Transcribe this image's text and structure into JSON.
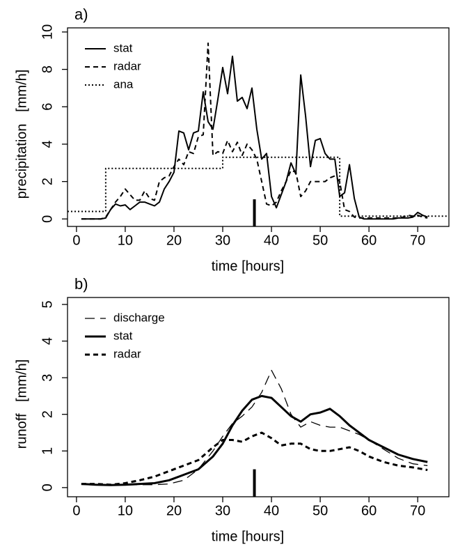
{
  "chart_data": [
    {
      "type": "line",
      "panel_label": "a)",
      "xlabel": "time   [hours]",
      "ylabel": "precipitation   [mm/h]",
      "xlim": [
        -1.84,
        76.4
      ],
      "ylim": [
        -0.4,
        10.22
      ],
      "xticks": [
        0,
        10,
        20,
        30,
        40,
        50,
        60,
        70
      ],
      "yticks": [
        0,
        2,
        4,
        6,
        8,
        10
      ],
      "x": [
        1,
        2,
        3,
        4,
        5,
        6,
        7,
        8,
        9,
        10,
        11,
        12,
        13,
        14,
        15,
        16,
        17,
        18,
        19,
        20,
        21,
        22,
        23,
        24,
        25,
        26,
        27,
        28,
        29,
        30,
        31,
        32,
        33,
        34,
        35,
        36,
        37,
        38,
        39,
        40,
        41,
        42,
        43,
        44,
        45,
        46,
        47,
        48,
        49,
        50,
        51,
        52,
        53,
        54,
        55,
        56,
        57,
        58,
        59,
        60,
        61,
        62,
        63,
        64,
        65,
        66,
        67,
        68,
        69,
        70,
        71,
        72
      ],
      "series": [
        {
          "name": "stat",
          "color": "#000000",
          "line_style": "solid",
          "line_width": 2,
          "values": [
            0,
            0,
            0,
            0,
            0,
            0.05,
            0.5,
            0.8,
            0.7,
            0.75,
            0.5,
            0.7,
            0.9,
            0.9,
            0.8,
            0.7,
            0.9,
            1.6,
            2.0,
            2.5,
            4.7,
            4.6,
            3.7,
            4.6,
            4.7,
            6.8,
            5.2,
            4.8,
            6.4,
            8.1,
            6.7,
            8.7,
            6.3,
            6.5,
            5.9,
            7.0,
            4.8,
            3.2,
            3.5,
            1.2,
            0.6,
            1.3,
            2.0,
            3.0,
            2.4,
            7.7,
            5.5,
            2.8,
            4.2,
            4.3,
            3.5,
            3.2,
            3.2,
            1.2,
            1.4,
            2.9,
            1.1,
            0.1,
            0,
            0,
            0,
            0,
            0,
            0,
            0,
            0.05,
            0.05,
            0.05,
            0.1,
            0.35,
            0.2,
            0.1
          ]
        },
        {
          "name": "radar",
          "color": "#000000",
          "line_style": "dashed",
          "line_width": 2,
          "values": [
            0,
            0,
            0,
            0,
            0,
            0.1,
            0.5,
            0.9,
            1.2,
            1.6,
            1.3,
            1.0,
            1.0,
            1.5,
            1.1,
            1.0,
            2.0,
            2.2,
            2.3,
            2.8,
            3.2,
            2.9,
            3.6,
            3.5,
            4.4,
            4.5,
            9.4,
            3.4,
            3.6,
            3.5,
            4.2,
            3.6,
            4.1,
            3.4,
            4.0,
            3.7,
            3.2,
            2.0,
            0.8,
            0.7,
            0.9,
            1.5,
            2.0,
            2.6,
            2.5,
            1.2,
            1.5,
            2.0,
            2.0,
            2.0,
            2.0,
            2.2,
            2.3,
            2.0,
            0.5,
            0.4,
            0.1,
            0.05,
            0.05,
            0.05,
            0.05,
            0.05,
            0.05,
            0.05,
            0.05,
            0.05,
            0.1,
            0.2,
            0.15,
            0.2,
            0.1,
            0.05
          ]
        },
        {
          "name": "ana",
          "color": "#000000",
          "line_style": "dotted",
          "line_width": 2,
          "x": [
            -1.84,
            6,
            6,
            30,
            30,
            54,
            54,
            76.4
          ],
          "values": [
            0.4,
            0.4,
            2.7,
            2.7,
            3.3,
            3.3,
            0.15,
            0.15
          ]
        }
      ],
      "marker": {
        "x": 36.5,
        "y": 1.05
      }
    },
    {
      "type": "line",
      "panel_label": "b)",
      "xlabel": "time   [hours]",
      "ylabel": "runoff   [mm/h]",
      "xlim": [
        -1.84,
        76.4
      ],
      "ylim": [
        -0.25,
        5.19
      ],
      "xticks": [
        0,
        10,
        20,
        30,
        40,
        50,
        60,
        70
      ],
      "yticks": [
        0,
        1,
        2,
        3,
        4,
        5
      ],
      "x": [
        1,
        4,
        7,
        10,
        13,
        16,
        19,
        22,
        25,
        28,
        30,
        32,
        34,
        36,
        38,
        40,
        42,
        44,
        46,
        48,
        50,
        52,
        54,
        56,
        58,
        60,
        63,
        66,
        69,
        72
      ],
      "series": [
        {
          "name": "discharge",
          "color": "#000000",
          "line_style": "longdash",
          "line_width": 1.3,
          "values": [
            0.1,
            0.08,
            0.07,
            0.07,
            0.08,
            0.08,
            0.1,
            0.2,
            0.5,
            1.0,
            1.4,
            1.75,
            1.95,
            2.2,
            2.6,
            3.2,
            2.7,
            2.0,
            1.65,
            1.8,
            1.7,
            1.65,
            1.65,
            1.55,
            1.45,
            1.3,
            1.05,
            0.8,
            0.65,
            0.6
          ]
        },
        {
          "name": "stat",
          "color": "#000000",
          "line_style": "solid",
          "line_width": 3,
          "values": [
            0.1,
            0.08,
            0.07,
            0.08,
            0.1,
            0.12,
            0.2,
            0.35,
            0.5,
            0.85,
            1.2,
            1.7,
            2.1,
            2.4,
            2.5,
            2.45,
            2.2,
            1.95,
            1.8,
            2.0,
            2.05,
            2.15,
            1.95,
            1.7,
            1.5,
            1.3,
            1.1,
            0.9,
            0.78,
            0.7
          ]
        },
        {
          "name": "radar",
          "color": "#000000",
          "line_style": "dashed",
          "line_width": 3,
          "values": [
            0.1,
            0.1,
            0.08,
            0.12,
            0.2,
            0.3,
            0.45,
            0.6,
            0.75,
            1.1,
            1.3,
            1.3,
            1.25,
            1.4,
            1.5,
            1.35,
            1.15,
            1.2,
            1.2,
            1.05,
            1.0,
            1.0,
            1.05,
            1.1,
            1.0,
            0.85,
            0.7,
            0.6,
            0.55,
            0.48
          ]
        }
      ],
      "marker": {
        "x": 36.5,
        "y": 0.5
      }
    }
  ]
}
